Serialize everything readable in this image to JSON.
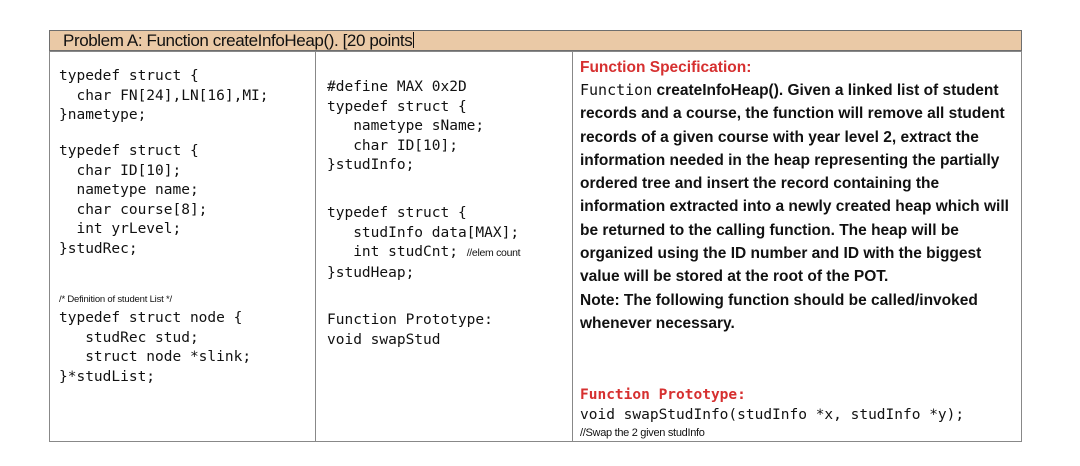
{
  "header": {
    "title": "Problem A: Function createInfoHeap(). [20 points"
  },
  "column1": {
    "nametype_code": "typedef struct {\n  char FN[24],LN[16],MI;\n}nametype;",
    "studrec_code": "typedef struct {\n  char ID[10];\n  nametype name;\n  char course[8];\n  int yrLevel;\n}studRec;",
    "list_comment": "/* Definition of student List */",
    "studlist_code": "typedef struct node {\n   studRec stud;\n   struct node *slink;\n}*studList;"
  },
  "column2": {
    "define_code": "#define MAX 0x2D\ntypedef struct {\n   nametype sName;\n   char ID[10];\n}studInfo;",
    "heap_code_before": "typedef struct {\n   studInfo data[MAX];\n   int studCnt; ",
    "heap_comment": "//elem count",
    "heap_code_after": "}studHeap;",
    "prototype_code": "Function Prototype:\nvoid swapStud"
  },
  "column3": {
    "spec_heading": "Function Specification:",
    "spec_word_mono": "Function",
    "spec_text": " createInfoHeap(). Given a linked list of student records and a course, the function will remove all student records of a given course with year level 2, extract the information needed in the heap representing the partially ordered tree and insert the record containing the information extracted into a newly created heap which will be returned to the calling function.  The heap will be organized using the ID number and ID with the biggest value will be stored at the root of the POT.",
    "note": "Note: The following function should be called/invoked whenever necessary.",
    "prototype_heading": "Function Prototype:",
    "prototype_code": "void swapStudInfo(studInfo *x, studInfo *y);",
    "prototype_comment": "//Swap the 2 given studInfo"
  }
}
